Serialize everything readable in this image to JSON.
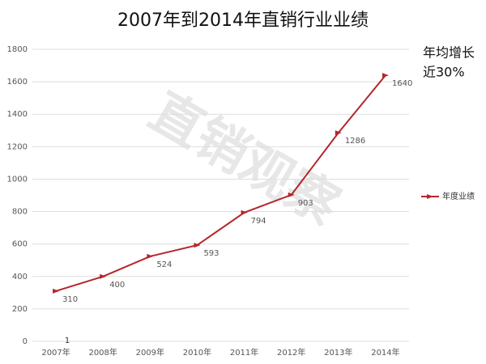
{
  "chart_data": {
    "type": "line",
    "title": "2007年到2014年直销行业业绩",
    "categories": [
      "2007年",
      "2008年",
      "2009年",
      "2010年",
      "2011年",
      "2012年",
      "2013年",
      "2014年"
    ],
    "series": [
      {
        "name": "年度业绩",
        "color": "#b5262c",
        "values": [
          310,
          400,
          524,
          593,
          794,
          903,
          1286,
          1640
        ]
      }
    ],
    "ylim": [
      0,
      1800
    ],
    "yticks": [
      0,
      200,
      400,
      600,
      800,
      1000,
      1200,
      1400,
      1600,
      1800
    ],
    "grid": true,
    "legend": "right",
    "annotations": [
      "年均增长",
      "近30%",
      "1"
    ],
    "watermark": "直销观察"
  }
}
